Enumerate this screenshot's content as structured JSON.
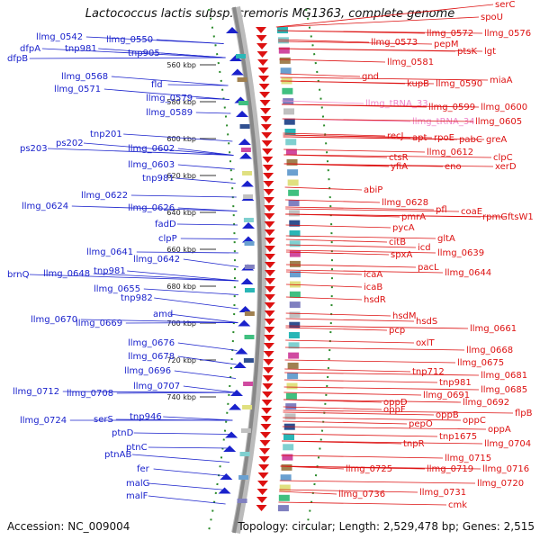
{
  "title": "Lactococcus lactis subsp. cremoris MG1363, complete genome",
  "accession": "Accession: NC_009004",
  "summary": "Topology: circular; Length: 2,529,478 bp; Genes: 2,515",
  "colors": {
    "left": "#1a22cc",
    "right": "#dd1111",
    "trna": "#ee88cc",
    "green": "#2a8a2a",
    "axis": "#888888"
  },
  "scale_marks": [
    "560 kbp",
    "580 kbp",
    "600 kbp",
    "620 kbp",
    "640 kbp",
    "660 kbp",
    "680 kbp",
    "700 kbp",
    "720 kbp",
    "740 kbp"
  ],
  "left_labels": [
    "llmg_0542",
    "llmg_0550",
    "dfpA",
    "tnp981",
    "tnp905",
    "dfpB",
    "llmg_0568",
    "fld",
    "llmg_0571",
    "llmg_0579",
    "llmg_0589",
    "tnp201",
    "ps202",
    "ps203",
    "llmg_0602",
    "llmg_0603",
    "tnp981",
    "llmg_0622",
    "llmg_0624",
    "llmg_0626",
    "fadD",
    "clpP",
    "llmg_0641",
    "llmg_0642",
    "brnQ",
    "llmg_0648",
    "tnp981",
    "llmg_0655",
    "tnp982",
    "amd",
    "llmg_0670",
    "llmg_0669",
    "llmg_0676",
    "llmg_0678",
    "llmg_0696",
    "llmg_0707",
    "llmg_0712",
    "llmg_0708",
    "llmg_0724",
    "serS",
    "tnp946",
    "ptnD",
    "ptnC",
    "ptnAB",
    "fer",
    "malG",
    "malF"
  ],
  "right_labels": [
    "serC",
    "spoU",
    "llmg_0572",
    "llmg_0576",
    "llmg_0573",
    "pepM",
    "ptsK",
    "lgt",
    "llmg_0581",
    "gnd",
    "kupB",
    "llmg_0590",
    "miaA",
    "llmg_tRNA_33",
    "llmg_0599",
    "llmg_0600",
    "llmg_tRNA_34",
    "llmg_0605",
    "recJ",
    "apt",
    "rpoE",
    "pabC",
    "greA",
    "llmg_0612",
    "ctsR",
    "clpC",
    "yfiA",
    "eno",
    "xerD",
    "abiP",
    "llmg_0628",
    "pfl",
    "coaE",
    "pmrA",
    "rpmG",
    "ftsW1",
    "pycA",
    "gltA",
    "citB",
    "icd",
    "spxA",
    "llmg_0639",
    "pacL",
    "icaA",
    "llmg_0644",
    "icaB",
    "hsdR",
    "hsdM",
    "hsdS",
    "pcp",
    "llmg_0661",
    "oxlT",
    "llmg_0668",
    "llmg_0675",
    "tnp712",
    "llmg_0681",
    "tnp981",
    "llmg_0685",
    "llmg_0691",
    "oppD",
    "llmg_0692",
    "oppF",
    "oppB",
    "flpB",
    "oppC",
    "pepO",
    "oppA",
    "tnp1675",
    "tnpR",
    "llmg_0704",
    "llmg_0715",
    "llmg_0716",
    "llmg_0725",
    "llmg_0719",
    "llmg_0720",
    "llmg_0731",
    "llmg_0736",
    "cmk"
  ]
}
